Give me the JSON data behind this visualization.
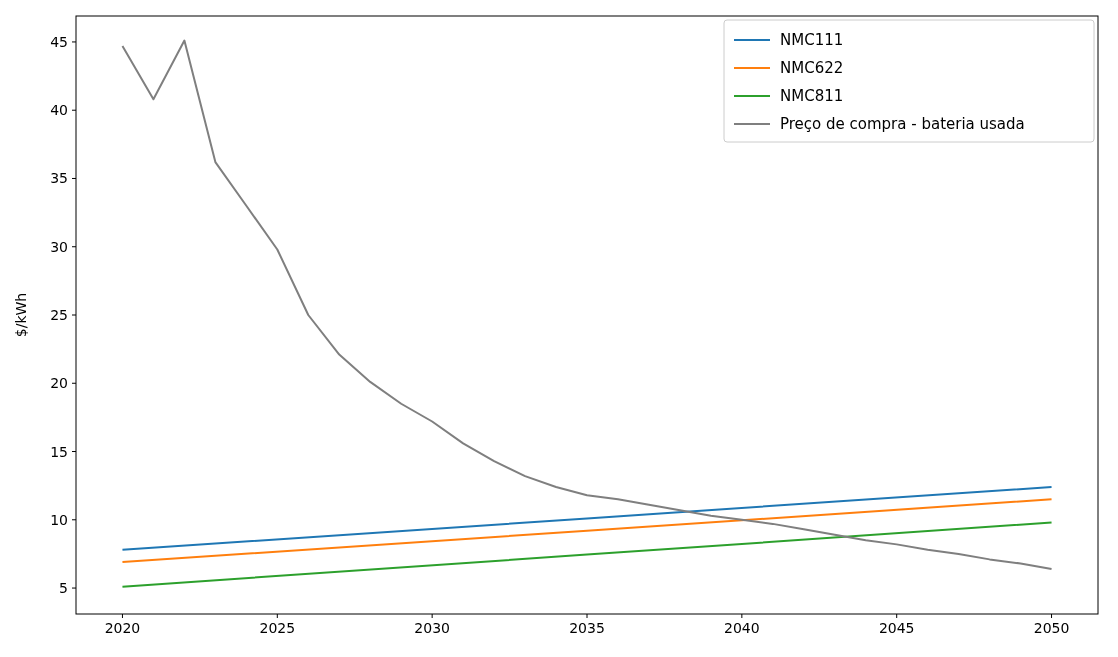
{
  "chart_data": {
    "type": "line",
    "ylabel": "$/kWh",
    "x": [
      2020,
      2021,
      2022,
      2023,
      2024,
      2025,
      2026,
      2027,
      2028,
      2029,
      2030,
      2031,
      2032,
      2033,
      2034,
      2035,
      2036,
      2037,
      2038,
      2039,
      2040,
      2041,
      2042,
      2043,
      2044,
      2045,
      2046,
      2047,
      2048,
      2049,
      2050
    ],
    "series": [
      {
        "name": "NMC111",
        "color": "#1f77b4",
        "x": [
          2020,
          2035,
          2050
        ],
        "values": [
          7.8,
          10.1,
          12.4
        ]
      },
      {
        "name": "NMC622",
        "color": "#ff7f0e",
        "x": [
          2020,
          2035,
          2050
        ],
        "values": [
          6.9,
          9.2,
          11.5
        ]
      },
      {
        "name": "NMC811",
        "color": "#2ca02c",
        "x": [
          2020,
          2035,
          2050
        ],
        "values": [
          5.1,
          7.45,
          9.8
        ]
      },
      {
        "name": "Preço de compra - bateria usada",
        "color": "#7f7f7f",
        "values": [
          44.7,
          40.8,
          45.1,
          36.2,
          33.0,
          29.8,
          25.0,
          22.1,
          20.1,
          18.5,
          17.2,
          15.6,
          14.3,
          13.2,
          12.4,
          11.8,
          11.5,
          11.1,
          10.7,
          10.3,
          10.0,
          9.7,
          9.3,
          8.9,
          8.5,
          8.2,
          7.8,
          7.5,
          7.1,
          6.8,
          6.4
        ]
      }
    ],
    "xlim": [
      2018.5,
      2051.5
    ],
    "xticks": [
      2020,
      2025,
      2030,
      2035,
      2040,
      2045,
      2050
    ],
    "ylim": [
      3.1,
      46.9
    ],
    "yticks": [
      5,
      10,
      15,
      20,
      25,
      30,
      35,
      40,
      45
    ],
    "legend": "top right",
    "grid": false
  }
}
